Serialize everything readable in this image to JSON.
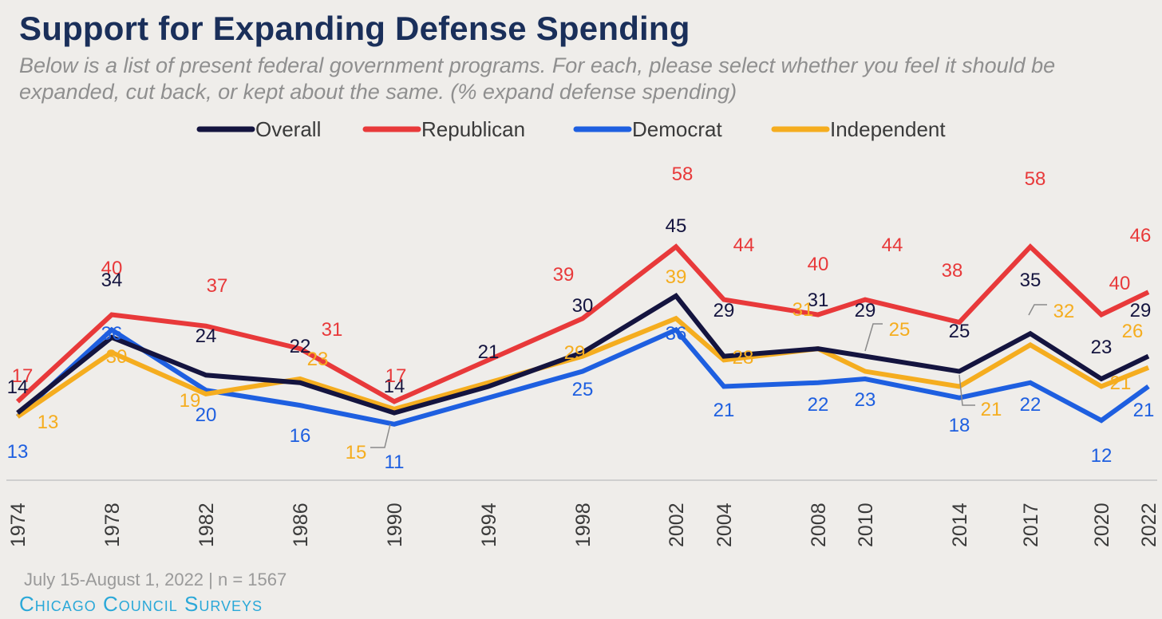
{
  "title": "Support for Expanding Defense Spending",
  "subtitle": "Below is a list of present federal government programs. For each, please select whether you feel it should be expanded, cut back, or kept about the same. (% expand defense spending)",
  "footer": {
    "note": "July 15-August 1, 2022  | n = 1567",
    "brand": "Chicago Council Surveys"
  },
  "colors": {
    "overall": "#14143f",
    "republican": "#e8393a",
    "democrat": "#1e5fe0",
    "independent": "#f5ad1f",
    "axis_text": "#3a3a3a",
    "baseline": "#cfcfcf",
    "leader": "#8a8a8a"
  },
  "chart_data": {
    "type": "line",
    "title": "Support for Expanding Defense Spending",
    "x": [
      "1974",
      "1978",
      "1982",
      "1986",
      "1990",
      "1994",
      "1998",
      "2002",
      "2004",
      "2008",
      "2010",
      "2014",
      "2017",
      "2020",
      "2022"
    ],
    "legend_position": "top-center",
    "grid": false,
    "series": [
      {
        "key": "overall",
        "name": "Overall",
        "values": [
          14,
          34,
          24,
          22,
          14,
          21,
          30,
          45,
          29,
          31,
          29,
          25,
          35,
          23,
          29
        ],
        "labels": [
          "14",
          "",
          "24",
          "22",
          "14",
          "21",
          "30",
          "45",
          "29",
          "31",
          "29",
          "25",
          "35",
          "23",
          "29"
        ]
      },
      {
        "key": "republican",
        "name": "Republican",
        "values": [
          17,
          40,
          37,
          31,
          17,
          null,
          39,
          58,
          44,
          40,
          44,
          38,
          58,
          40,
          46
        ],
        "labels": [
          "17",
          "40",
          "37",
          "31",
          "17",
          "",
          "39",
          "58",
          "44",
          "40",
          "44",
          "38",
          "58",
          "40",
          "46"
        ]
      },
      {
        "key": "democrat",
        "name": "Democrat",
        "values": [
          13,
          36,
          20,
          16,
          11,
          null,
          25,
          36,
          21,
          22,
          23,
          18,
          22,
          12,
          21
        ],
        "labels": [
          "13",
          "36",
          "20",
          "16",
          "11",
          "",
          "25",
          "36",
          "21",
          "22",
          "23",
          "18",
          "22",
          "12",
          "21"
        ]
      },
      {
        "key": "independent",
        "name": "Independent",
        "values": [
          13,
          30,
          19,
          23,
          15,
          null,
          29,
          39,
          28,
          31,
          25,
          21,
          32,
          21,
          26
        ],
        "labels": [
          "13",
          "30",
          "19",
          "23",
          "15",
          "",
          "29",
          "39",
          "28",
          "31",
          "25",
          "21",
          "32",
          "21",
          "26"
        ]
      }
    ]
  }
}
